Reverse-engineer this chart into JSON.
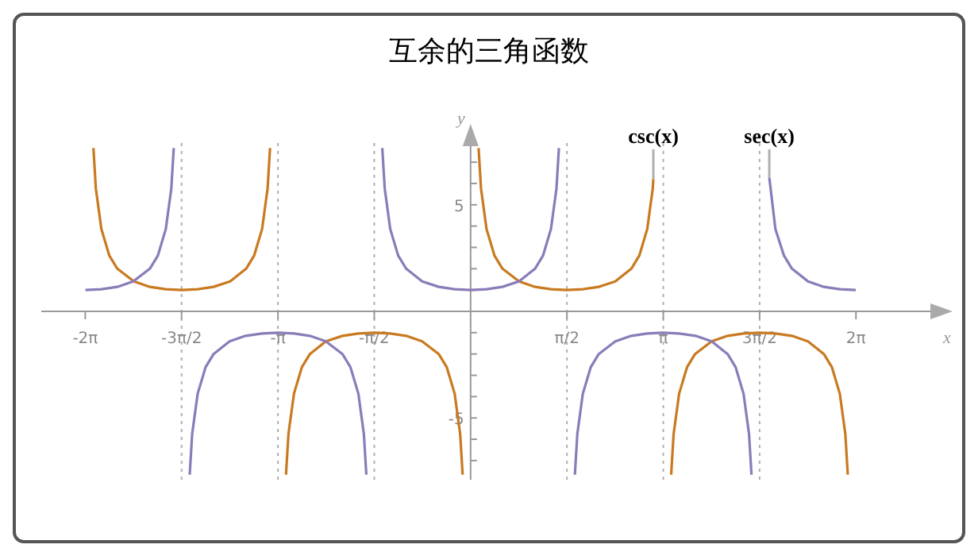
{
  "chart_data": {
    "type": "line",
    "title": "互余的三角函数",
    "xlabel": "x",
    "ylabel": "y",
    "xlim": [
      -7,
      7.6
    ],
    "ylim": [
      -7.9,
      7.9
    ],
    "xticks": [
      {
        "value": -6.2832,
        "label": "-2π"
      },
      {
        "value": -4.7124,
        "label": "-3π/2"
      },
      {
        "value": -3.1416,
        "label": "-π"
      },
      {
        "value": -1.5708,
        "label": "-π/2"
      },
      {
        "value": 1.5708,
        "label": "π/2"
      },
      {
        "value": 3.1416,
        "label": "π"
      },
      {
        "value": 4.7124,
        "label": "3π/2"
      },
      {
        "value": 6.2832,
        "label": "2π"
      }
    ],
    "yticks": [
      {
        "value": -7,
        "label": null
      },
      {
        "value": -6,
        "label": null
      },
      -5,
      {
        "value": -4,
        "label": null
      },
      {
        "value": -3,
        "label": null
      },
      {
        "value": -2,
        "label": null
      },
      {
        "value": -1,
        "label": null
      },
      {
        "value": 1,
        "label": null
      },
      {
        "value": 2,
        "label": null
      },
      {
        "value": 3,
        "label": null
      },
      {
        "value": 4,
        "label": null
      },
      5,
      {
        "value": 6,
        "label": null
      },
      {
        "value": 7,
        "label": null
      }
    ],
    "ref_lines": [
      {
        "axis": "x",
        "value": -4.7124,
        "color": "#b0b0b0",
        "line_style": "dotted"
      },
      {
        "axis": "x",
        "value": -3.1416,
        "color": "#b0b0b0",
        "line_style": "dotted"
      },
      {
        "axis": "x",
        "value": -1.5708,
        "color": "#b0b0b0",
        "line_style": "dotted"
      },
      {
        "axis": "x",
        "value": 1.5708,
        "color": "#b0b0b0",
        "line_style": "dotted"
      },
      {
        "axis": "x",
        "value": 3.1416,
        "color": "#b0b0b0",
        "line_style": "dotted"
      },
      {
        "axis": "x",
        "value": 4.7124,
        "color": "#b0b0b0",
        "line_style": "dotted"
      }
    ],
    "series": [
      {
        "name": "csc(x)",
        "color": "#c97a20",
        "x": [
          -6.15,
          -6.11,
          -6.02,
          -5.89,
          -5.76,
          -5.49,
          -5.23,
          -4.97,
          -4.71,
          -4.45,
          -4.19,
          -3.92,
          -3.66,
          -3.53,
          -3.4,
          -3.31,
          -3.27,
          -3.2,
          -3.01,
          -2.97,
          -2.88,
          -2.75,
          -2.62,
          -2.36,
          -2.09,
          -1.83,
          -1.57,
          -1.31,
          -1.05,
          -0.79,
          -0.52,
          -0.39,
          -0.26,
          -0.17,
          -0.13,
          0,
          0.13,
          0.17,
          0.26,
          0.39,
          0.52,
          0.79,
          1.05,
          1.31,
          1.57,
          1.83,
          2.09,
          2.36,
          2.62,
          2.75,
          2.88,
          2.97,
          2.98,
          3.1,
          3.27,
          3.31,
          3.4,
          3.53,
          3.66,
          3.93,
          4.19,
          4.45,
          4.71,
          4.97,
          5.24,
          5.5,
          5.76,
          5.89,
          6.02,
          6.11,
          6.15
        ],
        "values": [
          7.66,
          5.76,
          3.86,
          2.61,
          2,
          1.41,
          1.15,
          1.04,
          1,
          1.04,
          1.15,
          1.41,
          2,
          2.61,
          3.86,
          5.76,
          7.66,
          null,
          -7.66,
          -5.76,
          -3.86,
          -2.61,
          -2,
          -1.41,
          -1.15,
          -1.04,
          -1,
          -1.04,
          -1.15,
          -1.41,
          -2,
          -2.61,
          -3.86,
          -5.76,
          -7.66,
          null,
          7.66,
          5.76,
          3.86,
          2.61,
          2,
          1.41,
          1.15,
          1.04,
          1,
          1.04,
          1.15,
          1.41,
          2,
          2.61,
          3.86,
          5.76,
          6.21,
          null,
          -7.66,
          -5.76,
          -3.86,
          -2.61,
          -2,
          -1.41,
          -1.15,
          -1.04,
          -1,
          -1.04,
          -1.15,
          -1.41,
          -2,
          -2.61,
          -3.86,
          -5.76,
          -7.66
        ]
      },
      {
        "name": "sec(x)",
        "color": "#8a7cb8",
        "x": [
          -6.28,
          -6.02,
          -5.76,
          -5.5,
          -5.23,
          -5.1,
          -4.97,
          -4.88,
          -4.84,
          -4.7,
          -4.58,
          -4.54,
          -4.45,
          -4.32,
          -4.19,
          -3.93,
          -3.67,
          -3.4,
          -3.14,
          -2.88,
          -2.62,
          -2.36,
          -2.09,
          -1.96,
          -1.83,
          -1.74,
          -1.7,
          -1.6,
          -1.44,
          -1.4,
          -1.31,
          -1.18,
          -1.05,
          -0.79,
          -0.52,
          -0.26,
          0,
          0.26,
          0.52,
          0.79,
          1.05,
          1.18,
          1.31,
          1.4,
          1.44,
          1.6,
          1.7,
          1.74,
          1.83,
          1.96,
          2.09,
          2.36,
          2.62,
          2.88,
          3.14,
          3.4,
          3.67,
          3.93,
          4.19,
          4.32,
          4.45,
          4.54,
          4.58,
          4.75,
          4.87,
          4.97,
          5.11,
          5.24,
          5.5,
          5.76,
          6.02,
          6.28
        ],
        "values": [
          1,
          1.04,
          1.15,
          1.41,
          2,
          2.61,
          3.86,
          5.76,
          7.66,
          null,
          -7.66,
          -5.76,
          -3.86,
          -2.61,
          -2,
          -1.41,
          -1.15,
          -1.04,
          -1,
          -1.04,
          -1.15,
          -1.41,
          -2,
          -2.61,
          -3.86,
          -5.76,
          -7.66,
          null,
          7.66,
          5.76,
          3.86,
          2.61,
          2,
          1.41,
          1.15,
          1.04,
          1,
          1.04,
          1.15,
          1.41,
          2,
          2.61,
          3.86,
          5.76,
          7.66,
          null,
          -7.66,
          -5.76,
          -3.86,
          -2.61,
          -2,
          -1.41,
          -1.15,
          -1.04,
          -1,
          -1.04,
          -1.15,
          -1.41,
          -2,
          -2.61,
          -3.86,
          -5.76,
          -7.66,
          null,
          6.28,
          3.86,
          2.61,
          2,
          1.41,
          1.15,
          1.04,
          1
        ]
      }
    ]
  }
}
